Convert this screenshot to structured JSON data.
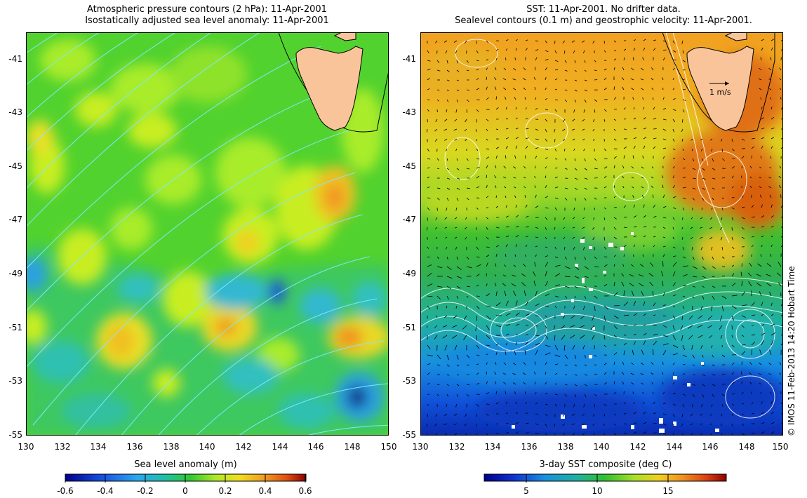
{
  "left_panel": {
    "title_line1": "Atmospheric pressure contours (2 hPa): 11-Apr-2001",
    "title_line2": "Isostatically adjusted sea level anomaly: 11-Apr-2001",
    "lat_labels": [
      "-41",
      "-43",
      "-45",
      "-47",
      "-49",
      "-51",
      "-53",
      "-55"
    ],
    "lon_labels": [
      "130",
      "132",
      "134",
      "136",
      "138",
      "140",
      "142",
      "144",
      "146",
      "148",
      "150"
    ],
    "colorbar": {
      "title": "Sea level anomaly (m)",
      "ticks": [
        "-0.6",
        "-0.4",
        "-0.2",
        "0",
        "0.2",
        "0.4",
        "0.6"
      ],
      "range": [
        -0.6,
        0.6
      ]
    }
  },
  "right_panel": {
    "title_line1": "SST: 11-Apr-2001. No drifter data.",
    "title_line2": "Sealevel contours (0.1 m) and geostrophic velocity: 11-Apr-2001.",
    "lat_labels": [
      "-41",
      "-43",
      "-45",
      "-47",
      "-49",
      "-51",
      "-53",
      "-55"
    ],
    "lon_labels": [
      "130",
      "132",
      "134",
      "136",
      "138",
      "140",
      "142",
      "144",
      "146",
      "148",
      "150"
    ],
    "velocity_scale_label": "1 m/s",
    "colorbar": {
      "title": "3-day SST composite (deg C)",
      "ticks": [
        "5",
        "10",
        "15"
      ],
      "range": [
        2,
        19
      ]
    }
  },
  "credit": "© IMOS 11-Feb-2013 14:20 Hobart Time",
  "colors": {
    "land": "#f9c49a",
    "pressure_contour_left": "#7fe8ff",
    "sealevel_contour": "#ffffff"
  },
  "map_extent": {
    "lon": [
      130,
      150
    ],
    "lat": [
      -55,
      -40
    ]
  }
}
